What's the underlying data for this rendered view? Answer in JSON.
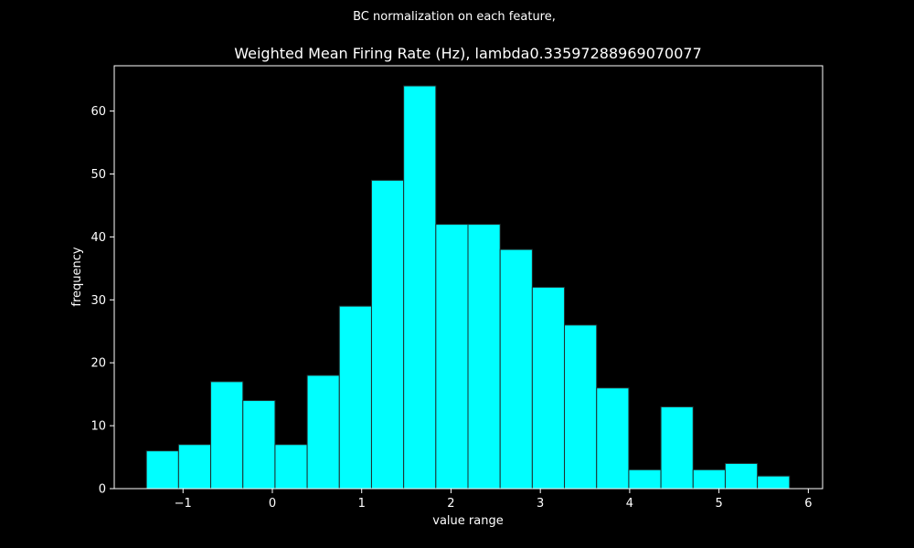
{
  "colors": {
    "background": "#000000",
    "foreground": "#ffffff",
    "bar_fill": "#00ffff",
    "bar_edge": "#1f2d2d"
  },
  "chart_data": {
    "type": "bar",
    "subtype": "histogram",
    "suptitle": "BC normalization on each feature,",
    "title": "Weighted Mean Firing Rate (Hz), lambda0.33597288969070077",
    "xlabel": "value range",
    "ylabel": "frequency",
    "xlim": [
      -1.77,
      6.16
    ],
    "ylim": [
      0,
      67.2
    ],
    "xticks": [
      -1,
      0,
      1,
      2,
      3,
      4,
      5,
      6
    ],
    "xtick_labels": [
      "−1",
      "0",
      "1",
      "2",
      "3",
      "4",
      "5",
      "6"
    ],
    "yticks": [
      0,
      10,
      20,
      30,
      40,
      50,
      60
    ],
    "ytick_labels": [
      "0",
      "10",
      "20",
      "30",
      "40",
      "50",
      "60"
    ],
    "grid": false,
    "bin_edges": [
      -1.41,
      -1.05,
      -0.69,
      -0.33,
      0.03,
      0.39,
      0.75,
      1.11,
      1.47,
      1.83,
      2.19,
      2.55,
      2.91,
      3.27,
      3.63,
      3.99,
      4.35,
      4.71,
      5.07,
      5.43,
      5.79
    ],
    "values": [
      6,
      7,
      17,
      14,
      7,
      18,
      29,
      49,
      64,
      42,
      42,
      38,
      32,
      26,
      16,
      3,
      13,
      3,
      4,
      2
    ]
  }
}
